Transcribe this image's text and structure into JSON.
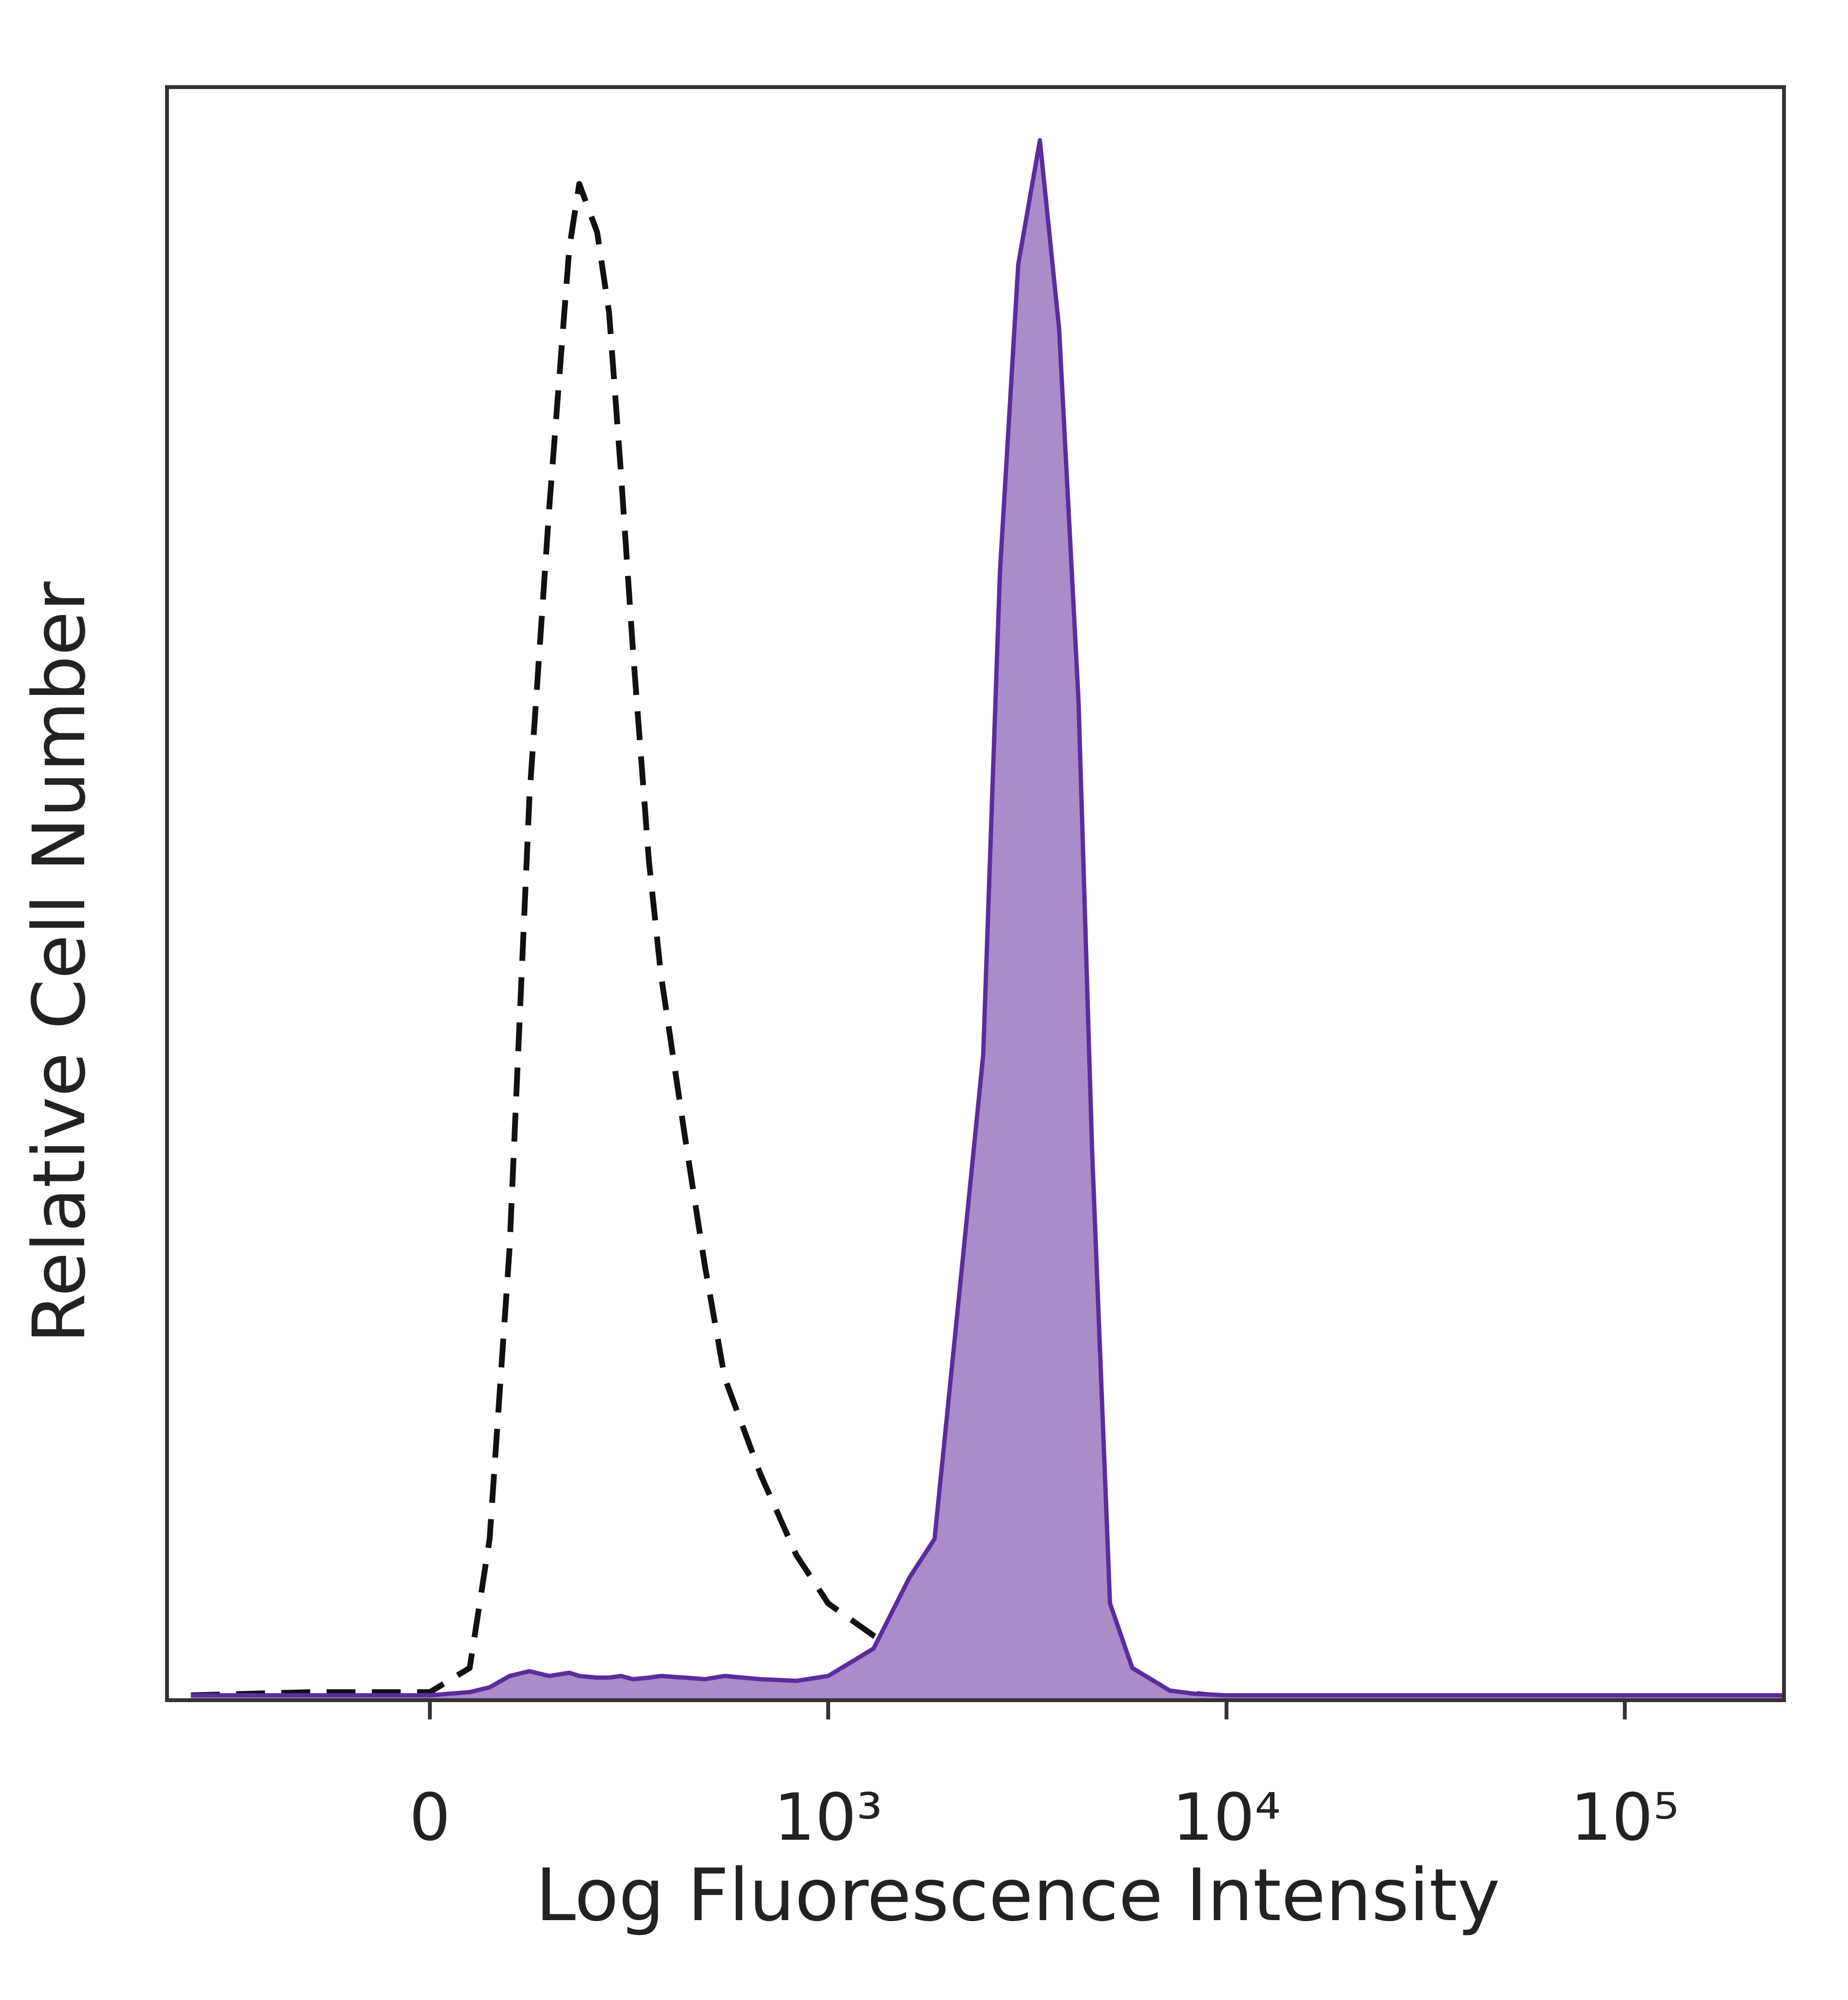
{
  "chart_data": {
    "type": "histogram-overlay",
    "x_label": "Log Fluorescence Intensity",
    "y_label": "Relative Cell Number",
    "xscale": "biexponential",
    "xlim": [
      -660,
      251000
    ],
    "xticks": [
      0,
      {
        "value": 1000,
        "label": "10³"
      },
      {
        "value": 10000,
        "label": "10⁴"
      },
      {
        "value": 100000,
        "label": "10⁵"
      }
    ],
    "ylim": [
      0,
      100
    ],
    "x": [
      -600,
      -300,
      0,
      100,
      150,
      200,
      250,
      300,
      350,
      375,
      420,
      450,
      480,
      510,
      550,
      580,
      640,
      690,
      740,
      830,
      920,
      1000,
      1300,
      1600,
      1850,
      2150,
      2450,
      2700,
      3000,
      3400,
      3800,
      4250,
      4600,
      5100,
      5800,
      7200,
      8300,
      10000,
      30000,
      100000,
      250000
    ],
    "series": [
      {
        "color": "#111111",
        "style": "dashed",
        "values": [
          0.3,
          0.5,
          0.5,
          2,
          10,
          28,
          56,
          74,
          90,
          94,
          91,
          86,
          76,
          65,
          52,
          45,
          35,
          27,
          20,
          14,
          9,
          6,
          4,
          2.5,
          2,
          1.5,
          1.3,
          1.2,
          1.2,
          1,
          0.9,
          0.8,
          0.7,
          0.6,
          0.5,
          0.5,
          0.4,
          0.2,
          0.2,
          0.2,
          0.2
        ]
      },
      {
        "color": "#5b2c9e",
        "fill": "#a98cc8",
        "style": "filled",
        "values": [
          0.3,
          0.3,
          0.3,
          0.5,
          0.8,
          1.5,
          1.8,
          1.5,
          1.7,
          1.5,
          1.4,
          1.4,
          1.5,
          1.3,
          1.4,
          1.5,
          1.4,
          1.3,
          1.5,
          1.3,
          1.2,
          1.5,
          3.2,
          7.6,
          10,
          26,
          40,
          70,
          89,
          96.7,
          85,
          62,
          34,
          6,
          2,
          0.6,
          0.4,
          0.3,
          0.3,
          0.3,
          0.3
        ]
      }
    ]
  }
}
